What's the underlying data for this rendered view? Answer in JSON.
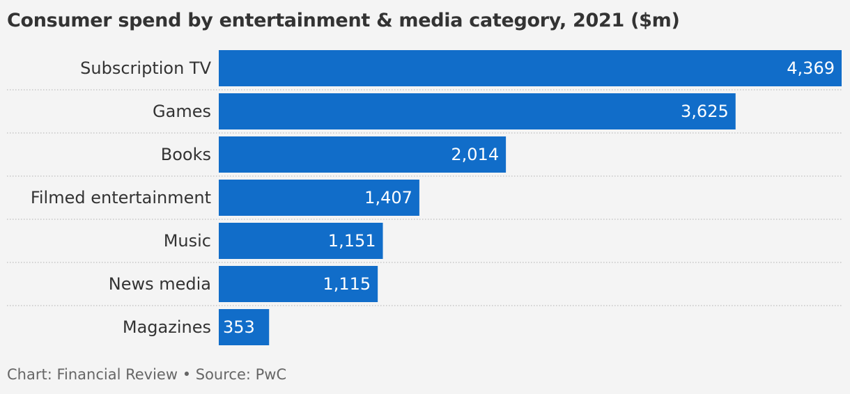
{
  "chart_data": {
    "type": "bar",
    "orientation": "horizontal",
    "title": "Consumer spend by entertainment & media category, 2021 ($m)",
    "categories": [
      "Subscription TV",
      "Games",
      "Books",
      "Filmed entertainment",
      "Music",
      "News media",
      "Magazines"
    ],
    "values": [
      4369,
      3625,
      2014,
      1407,
      1151,
      1115,
      353
    ],
    "value_labels": [
      "4,369",
      "3,625",
      "2,014",
      "1,407",
      "1,151",
      "1,115",
      "353"
    ],
    "xlim": [
      0,
      4369
    ],
    "bar_color": "#116dc9",
    "value_label_color": "#ffffff",
    "grid": "dotted separators between rows",
    "legend": "none"
  },
  "footer": {
    "credit": "Chart: Financial Review • Source: PwC"
  }
}
